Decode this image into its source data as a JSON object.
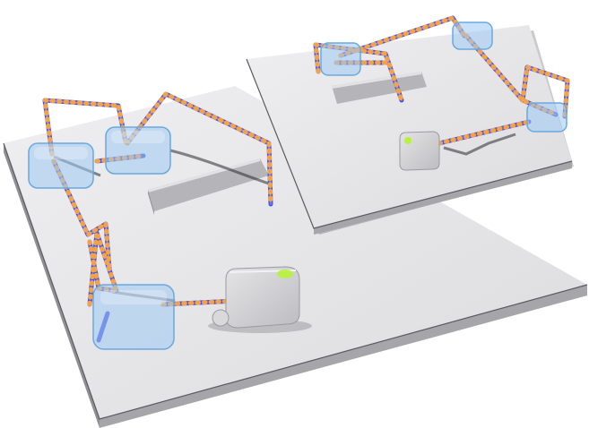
{
  "scene": {
    "colors": {
      "background": "#ffffff",
      "platform_top": "#e6e6e8",
      "platform_side": "#a9a9ad",
      "platform_edge": "#55555a",
      "block": "#cfcfd2",
      "block_dark": "#9b9ba0",
      "tube": "#4a55e6",
      "tube_dark": "#2f37b8",
      "tube_stripe": "#f4a24a",
      "glass": "#9cc9f2",
      "glass_edge": "#6aa8e0",
      "device": "#d6d6d9",
      "device_dark": "#a5a5aa",
      "indicator": "#b6f23a",
      "shadow": "#2a2a2e"
    },
    "objects": [
      "large-platform",
      "small-platform",
      "tube-network",
      "glass-junction-boxes",
      "control-units",
      "bar-blocks"
    ]
  }
}
